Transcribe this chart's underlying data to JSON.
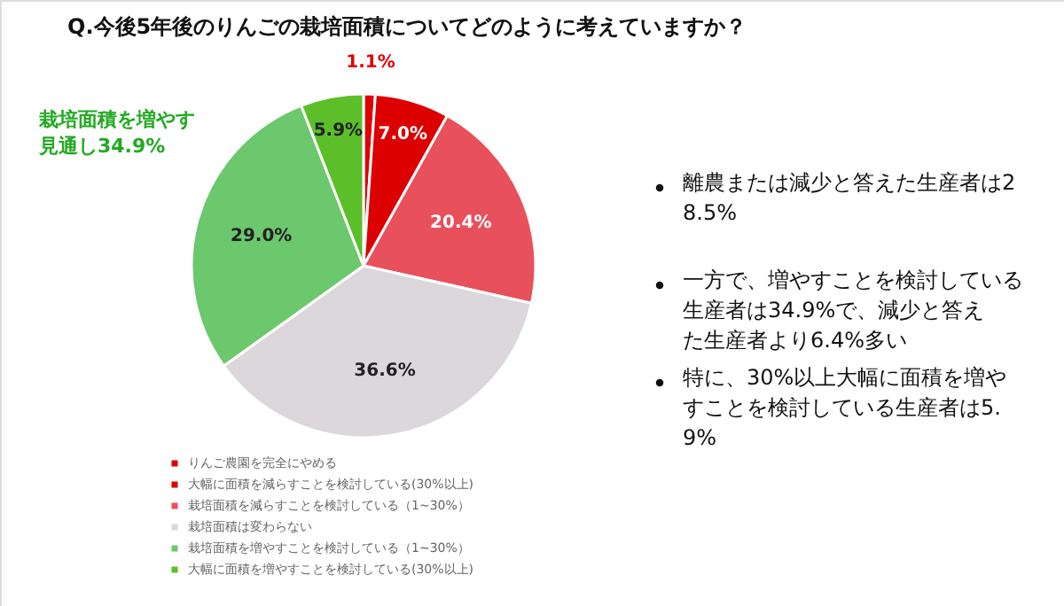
{
  "chart_data": {
    "type": "pie",
    "title": "Q.今後5年後のりんごの栽培面積についてどのように考えていますか？",
    "categories": [
      "りんご農園を完全にやめる",
      "大幅に面積を減らすことを検討している(30%以上)",
      "栽培面積を減らすことを検討している（1~30%）",
      "栽培面積は変わらない",
      "栽培面積を増やすことを検討している（1~30%）",
      "大幅に面積を増やすことを検討している(30%以上)"
    ],
    "values": [
      1.1,
      7.0,
      20.4,
      36.6,
      29.0,
      5.9
    ],
    "colors": [
      "#e00000",
      "#dc0000",
      "#e8505b",
      "#dcd7da",
      "#6cc86c",
      "#5cbf2a"
    ],
    "value_labels": [
      "1.1%",
      "7.0%",
      "20.4%",
      "36.6%",
      "29.0%",
      "5.9%"
    ],
    "legend": "bottom left",
    "annotations": [
      "栽培面積を増やす見通し34.9%",
      "離農または減少と答えた生産者は28.5%",
      "一方で、増やすことを検討している生産者は34.9%で、減少と答えた生産者より6.4%多い",
      "特に、30%以上大幅に面積を増やすことを検討している生産者は5.9%"
    ]
  }
}
